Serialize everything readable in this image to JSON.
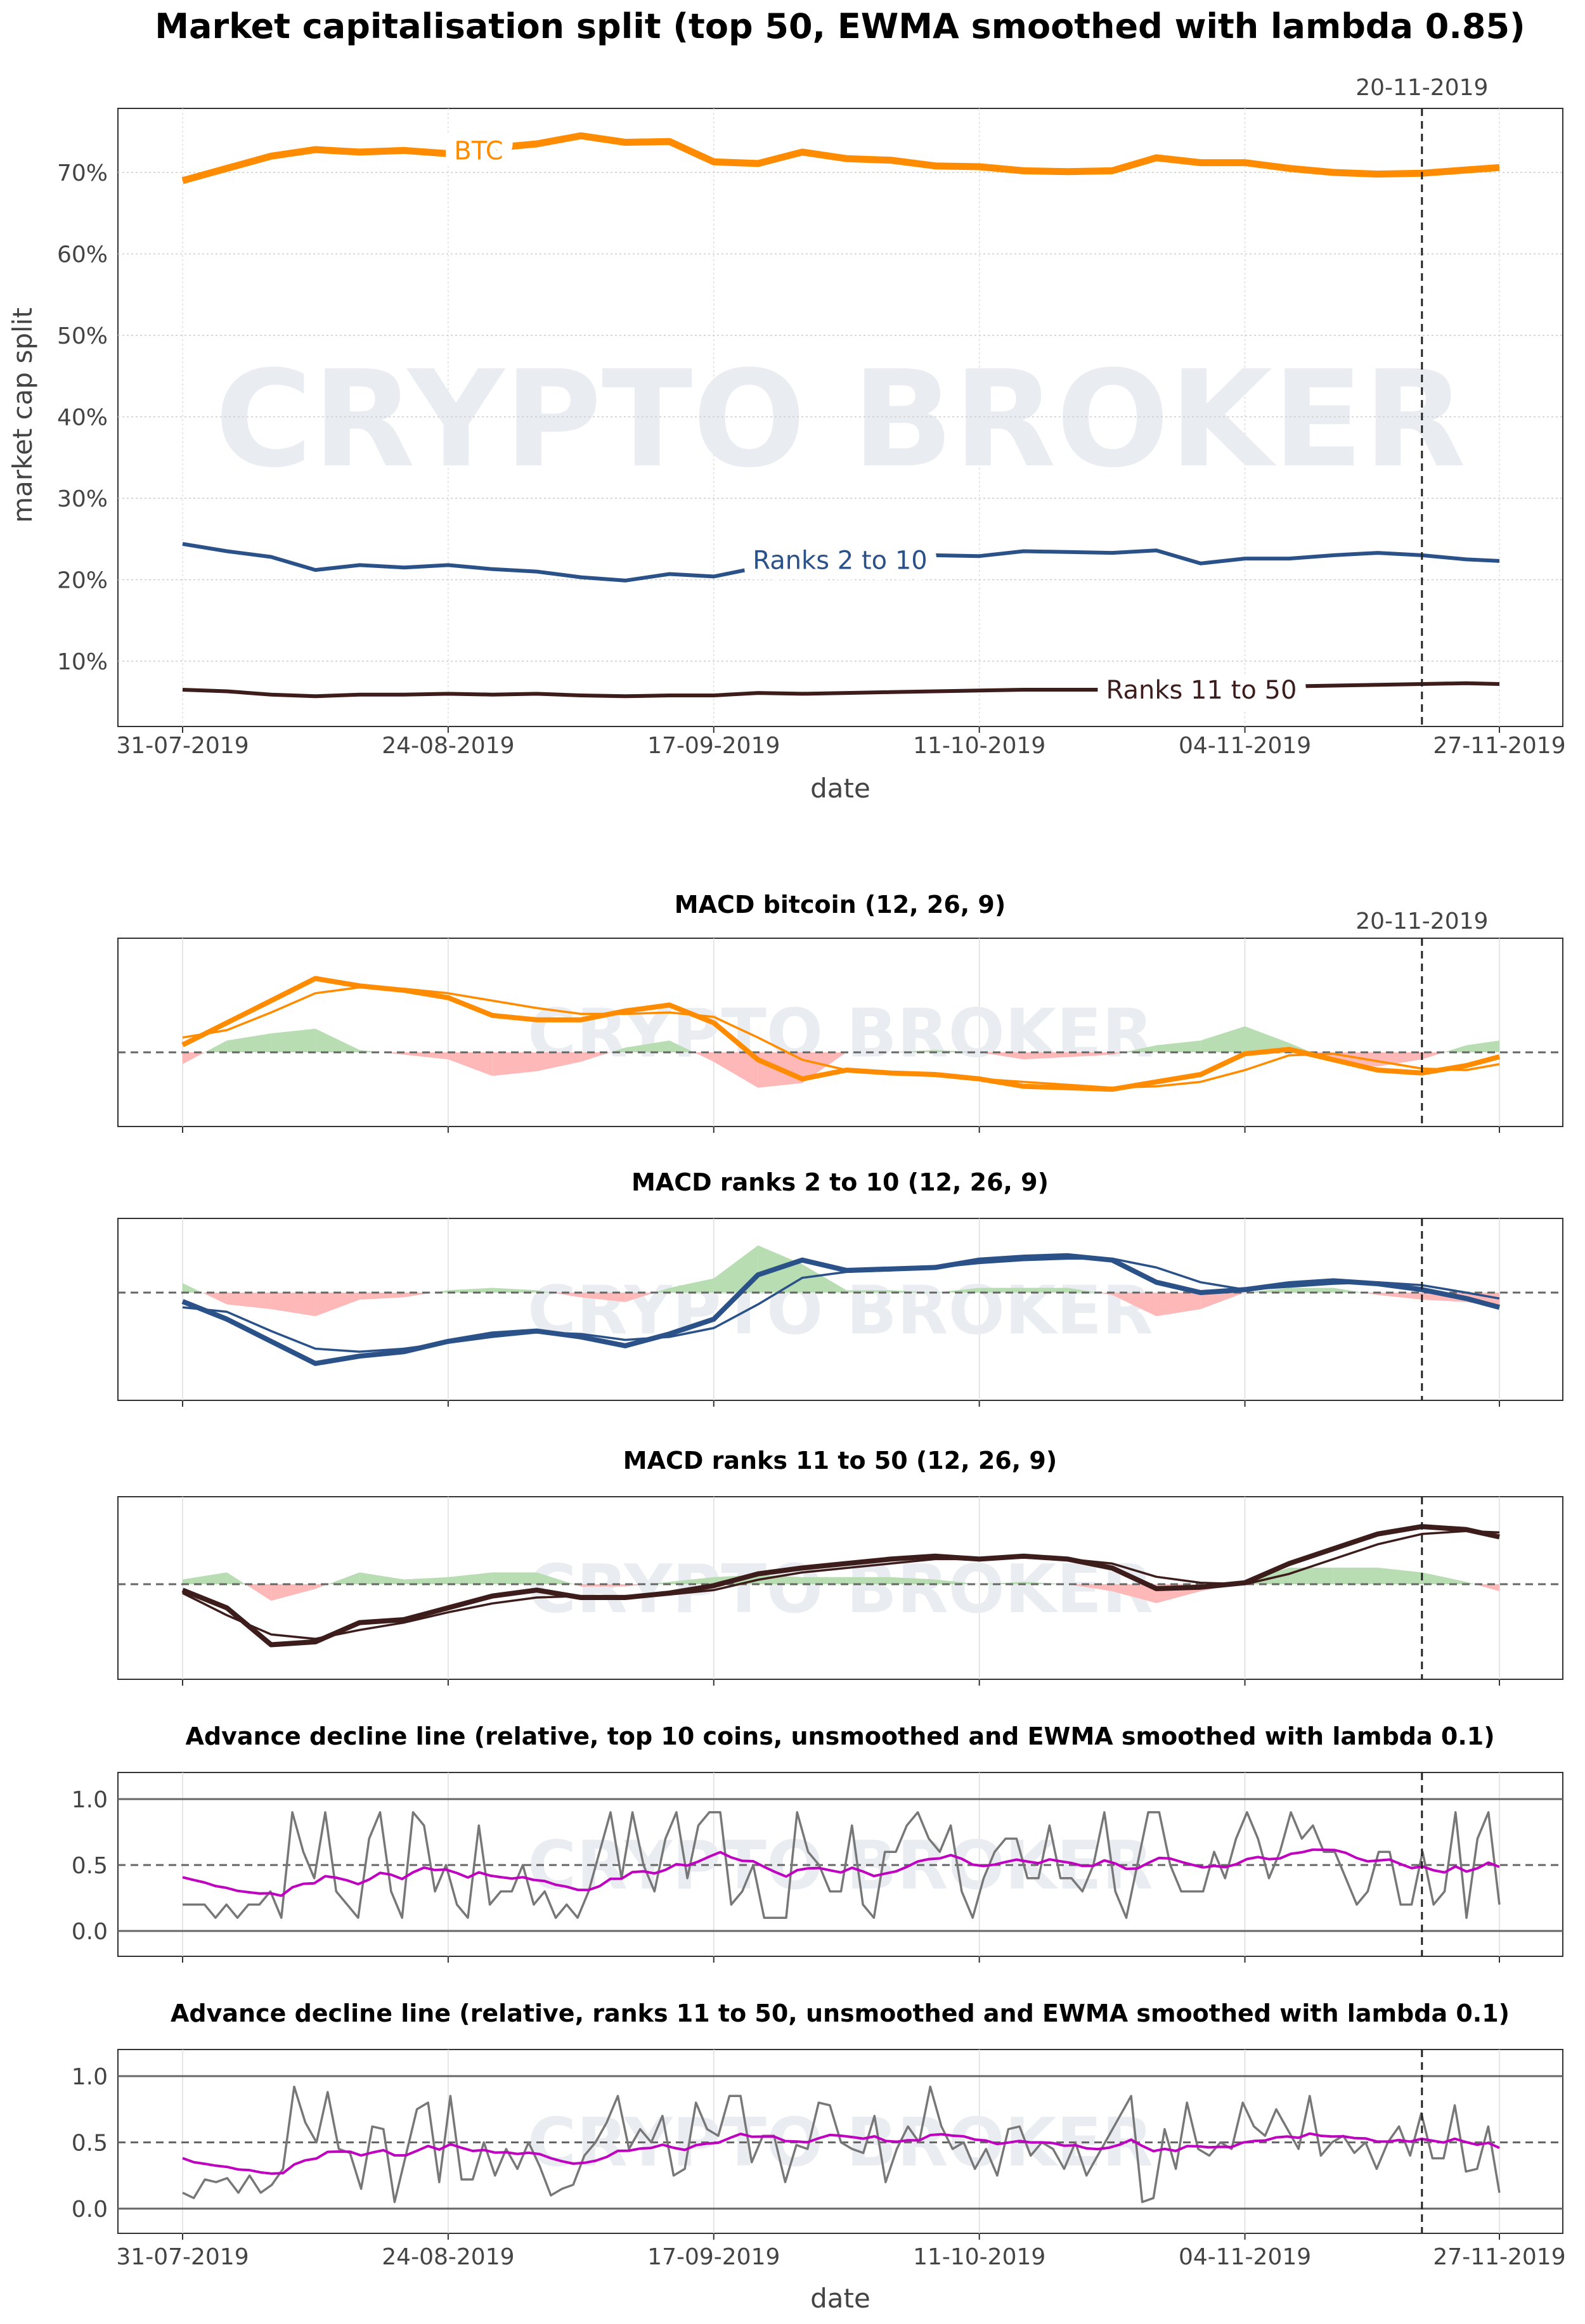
{
  "title": "Market capitalisation split (top 50, EWMA smoothed with lambda 0.85)",
  "watermark": "CRYPTO BROKER",
  "marker_date": "20-11-2019",
  "x_ticks": [
    "31-07-2019",
    "24-08-2019",
    "17-09-2019",
    "11-10-2019",
    "04-11-2019",
    "27-11-2019"
  ],
  "x_label": "date",
  "colors": {
    "btc": "#FF8C00",
    "ranks_2_10": "#2B5189",
    "ranks_11_50": "#3D1C1C",
    "hist_pos": "#B9DDB2",
    "hist_neg": "#FFB8B8",
    "smoothed": "#C000C0",
    "raw": "#777777"
  },
  "chart_data": [
    {
      "type": "line",
      "title": "Market capitalisation split (top 50, EWMA smoothed with lambda 0.85)",
      "xlabel": "date",
      "ylabel": "market cap split",
      "y_ticks": [
        "10%",
        "20%",
        "30%",
        "40%",
        "50%",
        "60%",
        "70%"
      ],
      "ylim": [
        2,
        77
      ],
      "x_day_offsets": [
        0,
        4,
        8,
        12,
        16,
        20,
        24,
        28,
        32,
        36,
        40,
        44,
        48,
        52,
        56,
        60,
        64,
        68,
        72,
        76,
        80,
        84,
        88,
        92,
        96,
        100,
        104,
        108,
        112,
        116,
        119
      ],
      "grid": true,
      "series": [
        {
          "name": "BTC",
          "values": [
            69,
            70.5,
            72,
            72.8,
            72.5,
            72.7,
            72.3,
            73,
            73.5,
            74.5,
            73.7,
            73.8,
            71.3,
            71.1,
            72.5,
            71.7,
            71.5,
            70.8,
            70.7,
            70.2,
            70.1,
            70.2,
            71.8,
            71.2,
            71.2,
            70.5,
            70,
            69.8,
            69.9,
            70.3,
            70.6
          ]
        },
        {
          "name": "Ranks 2 to 10",
          "values": [
            24.4,
            23.5,
            22.8,
            21.2,
            21.8,
            21.5,
            21.8,
            21.3,
            21,
            20.3,
            19.9,
            20.7,
            20.4,
            21.5,
            22.9,
            22.9,
            22.9,
            23,
            22.9,
            23.5,
            23.4,
            23.3,
            23.6,
            22.0,
            22.6,
            22.6,
            23,
            23.3,
            23.0,
            22.5,
            22.3
          ]
        },
        {
          "name": "Ranks 11 to 50",
          "values": [
            6.5,
            6.3,
            5.9,
            5.7,
            5.9,
            5.9,
            6,
            5.9,
            6,
            5.8,
            5.7,
            5.8,
            5.8,
            6.1,
            6.0,
            6.1,
            6.2,
            6.3,
            6.4,
            6.5,
            6.5,
            6.5,
            6.6,
            6.7,
            6.8,
            6.9,
            7.0,
            7.1,
            7.2,
            7.3,
            7.2
          ]
        }
      ],
      "vline": "20-11-2019"
    },
    {
      "type": "line",
      "title": "MACD bitcoin (12, 26, 9)",
      "x_day_offsets": [
        0,
        4,
        8,
        12,
        16,
        20,
        24,
        28,
        32,
        36,
        40,
        44,
        48,
        52,
        56,
        60,
        64,
        68,
        72,
        76,
        80,
        84,
        88,
        92,
        96,
        100,
        104,
        108,
        112,
        116,
        119
      ],
      "macd": [
        0.5,
        2,
        3.5,
        5,
        4.5,
        4.2,
        3.7,
        2.5,
        2.2,
        2.2,
        2.8,
        3.2,
        2,
        -0.5,
        -1.8,
        -1.2,
        -1.4,
        -1.5,
        -1.8,
        -2.3,
        -2.4,
        -2.5,
        -2,
        -1.5,
        -0.1,
        0.2,
        -0.5,
        -1.2,
        -1.4,
        -0.9,
        -0.3
      ],
      "signal": [
        1,
        1.5,
        2.7,
        4,
        4.4,
        4.3,
        4,
        3.5,
        3,
        2.6,
        2.6,
        2.7,
        2.4,
        1,
        -0.5,
        -1.2,
        -1.4,
        -1.6,
        -1.8,
        -2,
        -2.2,
        -2.4,
        -2.3,
        -2,
        -1.2,
        -0.2,
        -0.1,
        -0.6,
        -1.1,
        -1.2,
        -0.8
      ]
    },
    {
      "type": "line",
      "title": "MACD ranks 2 to 10 (12, 26, 9)",
      "x_day_offsets": [
        0,
        4,
        8,
        12,
        16,
        20,
        24,
        28,
        32,
        36,
        40,
        44,
        48,
        52,
        56,
        60,
        64,
        68,
        72,
        76,
        80,
        84,
        88,
        92,
        96,
        100,
        104,
        108,
        112,
        116,
        119
      ],
      "macd": [
        -0.6,
        -1.8,
        -3.3,
        -4.8,
        -4.3,
        -4,
        -3.3,
        -2.8,
        -2.6,
        -3,
        -3.6,
        -2.8,
        -1.8,
        1.2,
        2.2,
        1.5,
        1.6,
        1.7,
        2.2,
        2.4,
        2.5,
        2.2,
        0.7,
        0,
        0.2,
        0.6,
        0.8,
        0.6,
        0.2,
        -0.4,
        -1
      ],
      "signal": [
        -1,
        -1.3,
        -2.6,
        -3.8,
        -4,
        -3.8,
        -3.4,
        -3,
        -2.7,
        -2.8,
        -3.2,
        -3,
        -2.4,
        -0.8,
        1,
        1.4,
        1.5,
        1.7,
        2,
        2.2,
        2.3,
        2.3,
        1.7,
        0.7,
        0.2,
        0.4,
        0.6,
        0.7,
        0.5,
        0,
        -0.4
      ]
    },
    {
      "type": "line",
      "title": "MACD ranks 11 to 50 (12, 26, 9)",
      "x_day_offsets": [
        0,
        4,
        8,
        12,
        16,
        20,
        24,
        28,
        32,
        36,
        40,
        44,
        48,
        52,
        56,
        60,
        64,
        68,
        72,
        76,
        80,
        84,
        88,
        92,
        96,
        100,
        104,
        108,
        112,
        116,
        119
      ],
      "macd": [
        -0.4,
        -1.6,
        -4.1,
        -3.9,
        -2.6,
        -2.4,
        -1.6,
        -0.8,
        -0.4,
        -0.9,
        -0.9,
        -0.6,
        -0.1,
        0.7,
        1.1,
        1.4,
        1.7,
        1.9,
        1.7,
        1.9,
        1.7,
        1.1,
        -0.3,
        -0.2,
        0.1,
        1.4,
        2.4,
        3.4,
        3.9,
        3.7,
        3.2
      ],
      "signal": [
        -0.6,
        -2.1,
        -3.4,
        -3.7,
        -3.1,
        -2.6,
        -1.9,
        -1.3,
        -0.9,
        -0.8,
        -0.8,
        -0.7,
        -0.4,
        0.3,
        0.8,
        1.1,
        1.4,
        1.7,
        1.7,
        1.8,
        1.7,
        1.4,
        0.5,
        0.1,
        0,
        0.7,
        1.7,
        2.7,
        3.4,
        3.6,
        3.5
      ]
    },
    {
      "type": "line",
      "title": "Advance decline line (relative, top 10 coins, unsmoothed and EWMA smoothed with lambda 0.1)",
      "y_ticks": [
        "1.0",
        "0.5",
        "0.0"
      ],
      "ylim": [
        -0.2,
        1.2
      ],
      "smoothed_start": 0.43,
      "raw": [
        0.2,
        0.2,
        0.2,
        0.1,
        0.2,
        0.1,
        0.2,
        0.2,
        0.3,
        0.1,
        0.9,
        0.6,
        0.4,
        0.9,
        0.3,
        0.2,
        0.1,
        0.7,
        0.9,
        0.3,
        0.1,
        0.9,
        0.8,
        0.3,
        0.5,
        0.2,
        0.1,
        0.8,
        0.2,
        0.3,
        0.3,
        0.5,
        0.2,
        0.3,
        0.1,
        0.2,
        0.1,
        0.3,
        0.6,
        0.9,
        0.4,
        0.9,
        0.5,
        0.3,
        0.7,
        0.9,
        0.4,
        0.8,
        0.9,
        0.9,
        0.2,
        0.3,
        0.5,
        0.1,
        0.1,
        0.1,
        0.9,
        0.6,
        0.5,
        0.3,
        0.3,
        0.8,
        0.2,
        0.1,
        0.6,
        0.6,
        0.8,
        0.9,
        0.7,
        0.6,
        0.8,
        0.3,
        0.1,
        0.4,
        0.6,
        0.7,
        0.7,
        0.4,
        0.4,
        0.8,
        0.4,
        0.4,
        0.3,
        0.5,
        0.9,
        0.3,
        0.1,
        0.5,
        0.9,
        0.9,
        0.5,
        0.3,
        0.3,
        0.3,
        0.6,
        0.4,
        0.7,
        0.9,
        0.7,
        0.4,
        0.6,
        0.9,
        0.7,
        0.8,
        0.6,
        0.6,
        0.4,
        0.2,
        0.3,
        0.6,
        0.6,
        0.2,
        0.2,
        0.6,
        0.2,
        0.3,
        0.9,
        0.1,
        0.7,
        0.9,
        0.2
      ]
    },
    {
      "type": "line",
      "title": "Advance decline line (relative, ranks 11 to 50, unsmoothed and EWMA smoothed with lambda 0.1)",
      "y_ticks": [
        "1.0",
        "0.5",
        "0.0"
      ],
      "ylim": [
        -0.2,
        1.2
      ],
      "smoothed_start": 0.41,
      "raw": [
        0.12,
        0.08,
        0.22,
        0.2,
        0.23,
        0.12,
        0.25,
        0.12,
        0.18,
        0.3,
        0.92,
        0.65,
        0.5,
        0.88,
        0.45,
        0.42,
        0.15,
        0.62,
        0.6,
        0.05,
        0.4,
        0.75,
        0.8,
        0.2,
        0.85,
        0.22,
        0.22,
        0.5,
        0.25,
        0.45,
        0.3,
        0.5,
        0.32,
        0.1,
        0.15,
        0.18,
        0.4,
        0.5,
        0.65,
        0.85,
        0.45,
        0.6,
        0.5,
        0.7,
        0.25,
        0.3,
        0.8,
        0.6,
        0.55,
        0.85,
        0.85,
        0.35,
        0.55,
        0.55,
        0.2,
        0.48,
        0.45,
        0.8,
        0.78,
        0.5,
        0.45,
        0.42,
        0.7,
        0.2,
        0.45,
        0.62,
        0.5,
        0.92,
        0.62,
        0.45,
        0.5,
        0.3,
        0.45,
        0.25,
        0.6,
        0.62,
        0.4,
        0.5,
        0.45,
        0.3,
        0.5,
        0.25,
        0.4,
        0.55,
        0.7,
        0.85,
        0.05,
        0.08,
        0.6,
        0.3,
        0.8,
        0.45,
        0.4,
        0.5,
        0.45,
        0.8,
        0.62,
        0.55,
        0.75,
        0.6,
        0.45,
        0.85,
        0.4,
        0.5,
        0.55,
        0.42,
        0.5,
        0.3,
        0.5,
        0.62,
        0.4,
        0.72,
        0.38,
        0.38,
        0.78,
        0.28,
        0.3,
        0.62,
        0.12
      ]
    }
  ]
}
